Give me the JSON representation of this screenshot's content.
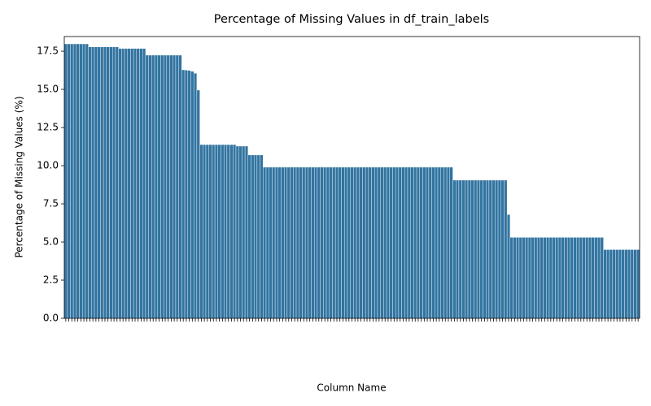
{
  "chart_data": {
    "type": "bar",
    "title": "Percentage of Missing Values in df_train_labels",
    "x_label": "Column Name",
    "y_label": "Percentage of Missing Values (%)",
    "color": "#3274a1",
    "ylim": [
      0,
      18.46
    ],
    "yticks": [
      {
        "value": 0,
        "label": "0.0"
      },
      2.5,
      {
        "value": 5,
        "label": "5.0"
      },
      7.5,
      {
        "value": 10,
        "label": "10.0"
      },
      12.5,
      {
        "value": 15,
        "label": "15.0"
      },
      17.5
    ],
    "categories": [
      null,
      null,
      null,
      null,
      null,
      null,
      null,
      null,
      null,
      null,
      null,
      null,
      null,
      null,
      null,
      null,
      null,
      null,
      null,
      null,
      null,
      null,
      null,
      null,
      null,
      null,
      null,
      null,
      null,
      null,
      null,
      null,
      null,
      null,
      null,
      null,
      null,
      null,
      null,
      null,
      null,
      null,
      null,
      null,
      null,
      null,
      null,
      null,
      null,
      null,
      null,
      null,
      null,
      null,
      null,
      null,
      null,
      null,
      null,
      null,
      null,
      null,
      null,
      null,
      null,
      null,
      null,
      null,
      null,
      null,
      null,
      null,
      null,
      null,
      null,
      null,
      null,
      null,
      null,
      null,
      null,
      null,
      null,
      null,
      null,
      null,
      null,
      null,
      null,
      null,
      null,
      null,
      null,
      null,
      null,
      null,
      null,
      null,
      null,
      null,
      null,
      null,
      null,
      null,
      null,
      null,
      null,
      null,
      null,
      null,
      null,
      null,
      null,
      null,
      null,
      null,
      null,
      null,
      null,
      null,
      null,
      null,
      null,
      null,
      null,
      null,
      null,
      null,
      null,
      null,
      null,
      null,
      null,
      null,
      null,
      null,
      null,
      null,
      null,
      null,
      null,
      null,
      null,
      null,
      null,
      null,
      null,
      null,
      null,
      null,
      null,
      null,
      null,
      null,
      null,
      null,
      null,
      null,
      null,
      null,
      null,
      null,
      null,
      null,
      null,
      null,
      null,
      null,
      null,
      null,
      null,
      null,
      null,
      null,
      null,
      null,
      null,
      null,
      null,
      null,
      null,
      null,
      null,
      null,
      null,
      null,
      null,
      null,
      null,
      null,
      null
    ],
    "values": [
      17.98,
      17.98,
      17.98,
      17.98,
      17.98,
      17.98,
      17.98,
      17.98,
      17.78,
      17.78,
      17.78,
      17.78,
      17.78,
      17.78,
      17.78,
      17.78,
      17.78,
      17.78,
      17.68,
      17.68,
      17.68,
      17.68,
      17.68,
      17.68,
      17.68,
      17.68,
      17.68,
      17.24,
      17.24,
      17.24,
      17.24,
      17.24,
      17.24,
      17.24,
      17.24,
      17.24,
      17.24,
      17.24,
      17.24,
      16.28,
      16.26,
      16.24,
      16.18,
      16.05,
      14.95,
      11.38,
      11.38,
      11.38,
      11.38,
      11.38,
      11.38,
      11.38,
      11.38,
      11.38,
      11.38,
      11.38,
      11.38,
      11.28,
      11.28,
      11.28,
      11.28,
      10.7,
      10.7,
      10.7,
      10.7,
      10.7,
      9.9,
      9.9,
      9.9,
      9.9,
      9.9,
      9.9,
      9.9,
      9.9,
      9.9,
      9.9,
      9.9,
      9.9,
      9.9,
      9.9,
      9.9,
      9.9,
      9.9,
      9.9,
      9.9,
      9.9,
      9.9,
      9.9,
      9.9,
      9.9,
      9.9,
      9.9,
      9.9,
      9.9,
      9.9,
      9.9,
      9.9,
      9.9,
      9.9,
      9.9,
      9.9,
      9.9,
      9.9,
      9.9,
      9.9,
      9.9,
      9.9,
      9.9,
      9.9,
      9.9,
      9.9,
      9.9,
      9.9,
      9.9,
      9.9,
      9.9,
      9.9,
      9.9,
      9.9,
      9.9,
      9.9,
      9.9,
      9.9,
      9.9,
      9.9,
      9.9,
      9.9,
      9.9,
      9.9,
      9.05,
      9.05,
      9.05,
      9.05,
      9.05,
      9.05,
      9.05,
      9.05,
      9.05,
      9.05,
      9.05,
      9.05,
      9.05,
      9.05,
      9.05,
      9.05,
      9.05,
      9.05,
      6.8,
      5.3,
      5.3,
      5.3,
      5.3,
      5.3,
      5.3,
      5.3,
      5.3,
      5.3,
      5.3,
      5.3,
      5.3,
      5.3,
      5.3,
      5.3,
      5.3,
      5.3,
      5.3,
      5.3,
      5.3,
      5.3,
      5.3,
      5.3,
      5.3,
      5.3,
      5.3,
      5.3,
      5.3,
      5.3,
      5.3,
      5.3,
      4.5,
      4.5,
      4.5,
      4.5,
      4.5,
      4.5,
      4.5,
      4.5,
      4.5,
      4.5,
      4.5,
      4.5
    ]
  }
}
